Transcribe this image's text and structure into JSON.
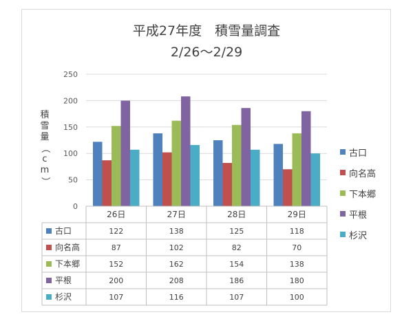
{
  "chart_data": {
    "type": "bar",
    "title": "平成27年度　積雪量調査",
    "subtitle": "2/26〜2/29",
    "ylabel": "積雪量（cm）",
    "ylim": [
      0,
      250
    ],
    "yticks": [
      0,
      50,
      100,
      150,
      200,
      250
    ],
    "categories": [
      "26日",
      "27日",
      "28日",
      "29日"
    ],
    "series": [
      {
        "name": "古口",
        "color": "#4f81bd",
        "values": [
          122,
          138,
          125,
          118
        ]
      },
      {
        "name": "向名高",
        "color": "#c0504d",
        "values": [
          87,
          102,
          82,
          70
        ]
      },
      {
        "name": "下本郷",
        "color": "#9bbb59",
        "values": [
          152,
          162,
          154,
          138
        ]
      },
      {
        "name": "平根",
        "color": "#8064a2",
        "values": [
          200,
          208,
          186,
          180
        ]
      },
      {
        "name": "杉沢",
        "color": "#4bacc6",
        "values": [
          107,
          116,
          107,
          100
        ]
      }
    ],
    "grid": true,
    "legend": "right",
    "data_table": true
  }
}
